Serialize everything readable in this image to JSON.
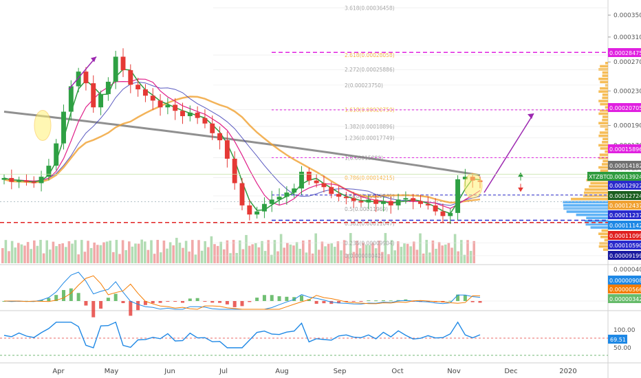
{
  "symbol": "XTZBTC",
  "colors": {
    "bg": "#ffffff",
    "up": "#2ea043",
    "down": "#e53935",
    "ma200": "#7d7d7d",
    "ma100": "#f0a030",
    "ma50": "#2f2fb0",
    "ma20": "#e0208a",
    "ema": "#2e9b3e",
    "magenta": "#e020e0",
    "blue": "#2a2acc",
    "red": "#e02020",
    "volUp": "#a5d6a7",
    "volDown": "#ef9a9a",
    "profile": "#f5b13a",
    "profileBlue": "#42a5f5"
  },
  "axes": {
    "x_ticks": [
      "Apr",
      "May",
      "Jun",
      "Jul",
      "Aug",
      "Sep",
      "Oct",
      "Nov",
      "Dec",
      "2020"
    ],
    "price_ticks": [
      "0.00035000",
      "0.00031000",
      "0.00027000",
      "0.00023000",
      "0.00019000",
      "0.00017000",
      "0.00015000"
    ],
    "macd_ticks": [
      "0.00004000"
    ],
    "rsi_ticks": [
      "100.00",
      "50.00"
    ]
  },
  "price_tags": [
    {
      "value": "0.00028475",
      "color": "#e020e0"
    },
    {
      "value": "0.00020705",
      "color": "#e020e0"
    },
    {
      "value": "0.00015896",
      "color": "#e020e0"
    },
    {
      "value": "0.00014182",
      "color": "#707070"
    },
    {
      "value": "0.00013924",
      "color": "#2e9b3e"
    },
    {
      "value": "0.00012922",
      "color": "#2a2acc"
    },
    {
      "value": "0.00012724",
      "color": "#1b5e20"
    },
    {
      "value": "0.00012437",
      "color": "#f0a030"
    },
    {
      "value": "0.00011237",
      "color": "#2a2acc"
    },
    {
      "value": "0.00011142",
      "color": "#1e88e5"
    },
    {
      "value": "0.00011099",
      "color": "#e02020"
    },
    {
      "value": "0.00010590",
      "color": "#2a2acc"
    },
    {
      "value": "0.00009199",
      "color": "#1a1aa0"
    }
  ],
  "macd_tags": [
    {
      "value": "0.00000908",
      "color": "#1e88e5"
    },
    {
      "value": "0.00000566",
      "color": "#f57c00"
    },
    {
      "value": "0.00000342",
      "color": "#66bb6a"
    }
  ],
  "rsi_tag": {
    "value": "69.51",
    "color": "#1e88e5"
  },
  "fib_levels": [
    {
      "label": "3.618(0.00036458)",
      "color": "#9e9e9e"
    },
    {
      "label": "2.618(0.00028058)",
      "color": "#f5b13a"
    },
    {
      "label": "2.272(0.00025886)",
      "color": "#9e9e9e"
    },
    {
      "label": "2(0.00023750)",
      "color": "#9e9e9e"
    },
    {
      "label": "1.618(0.00020750)",
      "color": "#f5b13a"
    },
    {
      "label": "1.382(0.00018896)",
      "color": "#9e9e9e"
    },
    {
      "label": "1.236(0.00017749)",
      "color": "#9e9e9e"
    },
    {
      "label": "1(0.00015880)",
      "color": "#9e9e9e"
    },
    {
      "label": "0.786(0.00014215)",
      "color": "#f5b13a"
    },
    {
      "label": "0.618(0.00012861)",
      "color": "#9e9e9e"
    },
    {
      "label": "0.5(0.00011969)",
      "color": "#9e9e9e"
    },
    {
      "label": "0.382(0.00011047)",
      "color": "#9e9e9e"
    },
    {
      "label": "0.236(0.00009904)",
      "color": "#9e9e9e"
    },
    {
      "label": "0(0.00008042)",
      "color": "#9e9e9e"
    }
  ],
  "chart_data": {
    "type": "line",
    "title": "",
    "series": [
      {
        "name": "XTZBTC",
        "values": [
          0.000142,
          0.000139,
          0.00014,
          0.000139,
          0.000138,
          0.000143,
          0.000152,
          0.000172,
          0.000205,
          0.000236,
          0.000256,
          0.00024,
          0.00021,
          0.000226,
          0.000242,
          0.000278,
          0.000258,
          0.000238,
          0.000232,
          0.000224,
          0.000218,
          0.00021,
          0.000213,
          0.000206,
          0.0002,
          0.000204,
          0.000198,
          0.000192,
          0.000182,
          0.000175,
          0.000158,
          0.000138,
          0.000122,
          0.000116,
          0.000118,
          0.000123,
          0.000126,
          0.000128,
          0.000131,
          0.000134,
          0.000147,
          0.00014,
          0.000138,
          0.000135,
          0.00013,
          0.000128,
          0.000127,
          0.000125,
          0.000124,
          0.000126,
          0.000123,
          0.000125,
          0.000122,
          0.000126,
          0.000127,
          0.000125,
          0.000123,
          0.000122,
          0.000118,
          0.000115,
          0.000117,
          0.000141,
          0.000143,
          0.00014,
          0.000139
        ]
      }
    ],
    "x_ticks": [
      "Apr",
      "May",
      "Jun",
      "Jul",
      "Aug",
      "Sep",
      "Oct",
      "Nov",
      "Dec",
      "2020"
    ],
    "ylim": [
      9.2e-05,
      0.00037
    ],
    "log_scale": true,
    "horizontal_levels": [
      0.00028475,
      0.00020705,
      0.00015896,
      0.00012922,
      0.00011237,
      0.00011099
    ],
    "grid": false,
    "legend": "none"
  }
}
